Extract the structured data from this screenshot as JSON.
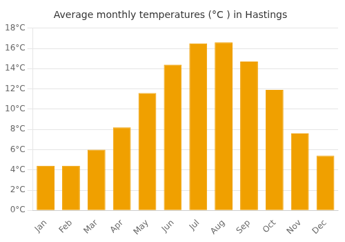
{
  "chart_data": {
    "type": "bar",
    "title": "Average monthly temperatures (°C ) in Hastings",
    "categories": [
      "Jan",
      "Feb",
      "Mar",
      "Apr",
      "May",
      "Jun",
      "Jul",
      "Aug",
      "Sep",
      "Oct",
      "Nov",
      "Dec"
    ],
    "values": [
      4.4,
      4.4,
      6.0,
      8.2,
      11.6,
      14.4,
      16.5,
      16.6,
      14.7,
      11.9,
      7.6,
      5.4
    ],
    "color": "#F0A000",
    "ylim": [
      0,
      18
    ],
    "yticks": [
      {
        "value": 0,
        "label": "0°C"
      },
      {
        "value": 2,
        "label": "2°C"
      },
      {
        "value": 4,
        "label": "4°C"
      },
      {
        "value": 6,
        "label": "6°C"
      },
      {
        "value": 8,
        "label": "8°C"
      },
      {
        "value": 10,
        "label": "10°C"
      },
      {
        "value": 12,
        "label": "12°C"
      },
      {
        "value": 14,
        "label": "14°C"
      },
      {
        "value": 16,
        "label": "16°C"
      },
      {
        "value": 18,
        "label": "18°C"
      }
    ],
    "grid": true
  }
}
